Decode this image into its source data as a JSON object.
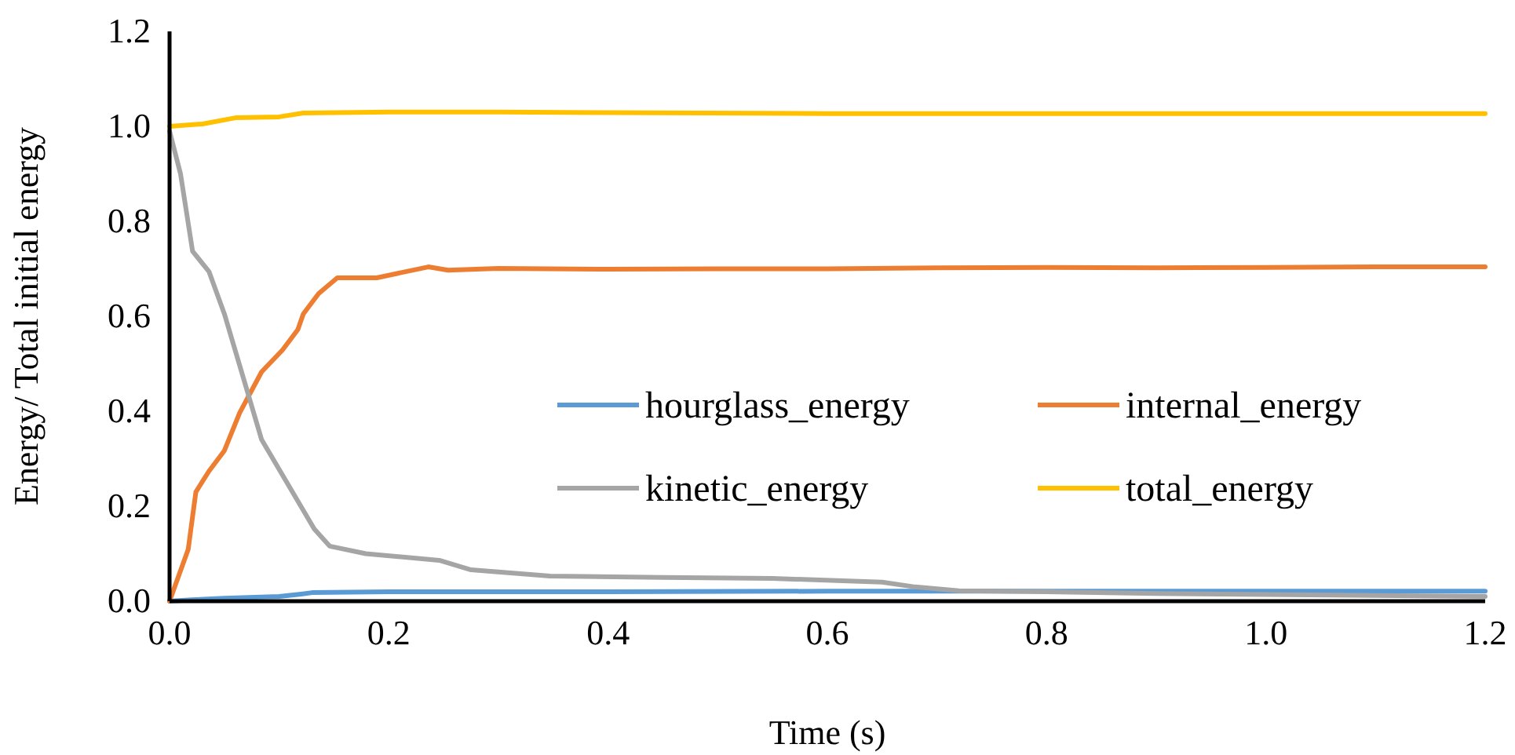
{
  "chart_data": {
    "type": "line",
    "xlabel": "Time (s)",
    "ylabel": "Energy/ Total initial energy",
    "xlim": [
      0,
      1.2
    ],
    "ylim": [
      0,
      1.2
    ],
    "xticks": [
      {
        "value": 0,
        "label": "0.0"
      },
      0.2,
      0.4,
      0.6,
      0.8,
      {
        "value": 1,
        "label": "1.0"
      },
      1.2
    ],
    "yticks": [
      {
        "value": 0,
        "label": "0.0"
      },
      0.2,
      0.4,
      0.6,
      0.8,
      {
        "value": 1,
        "label": "1.0"
      },
      1.2
    ],
    "grid": false,
    "legend": "right",
    "line_style": "solid",
    "marker": "none",
    "series": [
      {
        "name": "hourglass_energy",
        "color": "#5b9bd5",
        "x": [
          0,
          0.02,
          0.05,
          0.1,
          0.12,
          0.13,
          0.2,
          0.4,
          0.6,
          0.8,
          1.0,
          1.2
        ],
        "values": [
          0,
          0.003,
          0.006,
          0.01,
          0.015,
          0.018,
          0.02,
          0.02,
          0.021,
          0.021,
          0.021,
          0.021
        ]
      },
      {
        "name": "internal_energy",
        "color": "#ed7d31",
        "x": [
          0,
          0.017,
          0.024,
          0.036,
          0.05,
          0.064,
          0.084,
          0.103,
          0.117,
          0.122,
          0.136,
          0.153,
          0.189,
          0.236,
          0.254,
          0.3,
          0.4,
          0.5,
          0.6,
          0.7,
          0.8,
          0.9,
          1.0,
          1.1,
          1.2
        ],
        "values": [
          0,
          0.109,
          0.23,
          0.274,
          0.317,
          0.397,
          0.483,
          0.529,
          0.572,
          0.605,
          0.648,
          0.681,
          0.681,
          0.704,
          0.697,
          0.701,
          0.699,
          0.7,
          0.7,
          0.702,
          0.703,
          0.702,
          0.703,
          0.704,
          0.704
        ]
      },
      {
        "name": "kinetic_energy",
        "color": "#a5a5a5",
        "x": [
          0,
          0.01,
          0.021,
          0.036,
          0.05,
          0.064,
          0.084,
          0.107,
          0.132,
          0.146,
          0.179,
          0.246,
          0.275,
          0.347,
          0.45,
          0.55,
          0.65,
          0.68,
          0.72,
          0.8,
          0.9,
          1.0,
          1.1,
          1.2
        ],
        "values": [
          0.99,
          0.9,
          0.737,
          0.694,
          0.605,
          0.496,
          0.34,
          0.25,
          0.152,
          0.116,
          0.1,
          0.086,
          0.066,
          0.053,
          0.05,
          0.048,
          0.04,
          0.03,
          0.022,
          0.02,
          0.016,
          0.014,
          0.012,
          0.01
        ]
      },
      {
        "name": "total_energy",
        "color": "#ffc000",
        "x": [
          0,
          0.03,
          0.06,
          0.1,
          0.122,
          0.2,
          0.3,
          0.4,
          0.6,
          0.8,
          1.0,
          1.2
        ],
        "values": [
          1.0,
          1.005,
          1.018,
          1.02,
          1.028,
          1.03,
          1.03,
          1.029,
          1.027,
          1.027,
          1.027,
          1.027
        ]
      }
    ]
  }
}
